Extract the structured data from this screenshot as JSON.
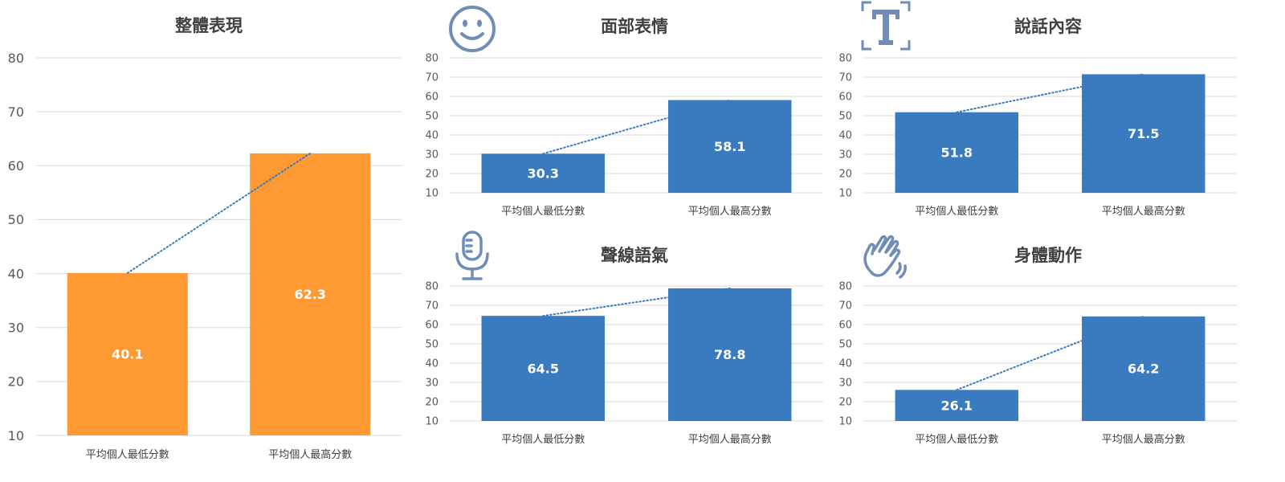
{
  "chart_data": [
    {
      "type": "bar",
      "title": "整體表現",
      "categories": [
        "平均個人最低分數",
        "平均個人最高分數"
      ],
      "values": [
        40.1,
        62.3
      ],
      "ylim": [
        10,
        80
      ],
      "yticks": [
        10,
        20,
        30,
        40,
        50,
        60,
        70,
        80
      ],
      "color": "#FF9933",
      "trendline": "dotted",
      "grid": true,
      "icon": ""
    },
    {
      "type": "bar",
      "title": "面部表情",
      "categories": [
        "平均個人最低分數",
        "平均個人最高分數"
      ],
      "values": [
        30.3,
        58.1
      ],
      "ylim": [
        10,
        80
      ],
      "yticks": [
        10,
        20,
        30,
        40,
        50,
        60,
        70,
        80
      ],
      "color": "#3A7BC0",
      "trendline": "dotted",
      "grid": true,
      "icon": "smiley-face-icon"
    },
    {
      "type": "bar",
      "title": "說話內容",
      "categories": [
        "平均個人最低分數",
        "平均個人最高分數"
      ],
      "values": [
        51.8,
        71.5
      ],
      "ylim": [
        10,
        80
      ],
      "yticks": [
        10,
        20,
        30,
        40,
        50,
        60,
        70,
        80
      ],
      "color": "#3A7BC0",
      "trendline": "dotted",
      "grid": true,
      "icon": "text-frame-icon"
    },
    {
      "type": "bar",
      "title": "聲線語氣",
      "categories": [
        "平均個人最低分數",
        "平均個人最高分數"
      ],
      "values": [
        64.5,
        78.8
      ],
      "ylim": [
        10,
        80
      ],
      "yticks": [
        10,
        20,
        30,
        40,
        50,
        60,
        70,
        80
      ],
      "color": "#3A7BC0",
      "trendline": "dotted",
      "grid": true,
      "icon": "microphone-icon"
    },
    {
      "type": "bar",
      "title": "身體動作",
      "categories": [
        "平均個人最低分數",
        "平均個人最高分數"
      ],
      "values": [
        26.1,
        64.2
      ],
      "ylim": [
        10,
        80
      ],
      "yticks": [
        10,
        20,
        30,
        40,
        50,
        60,
        70,
        80
      ],
      "color": "#3A7BC0",
      "trendline": "dotted",
      "grid": true,
      "icon": "waving-hand-icon"
    }
  ],
  "colors": {
    "trendline": "#3A7BC0",
    "icon": "#6F8DB8",
    "grid": "#D9D9D9",
    "axis_text": "#595959"
  }
}
